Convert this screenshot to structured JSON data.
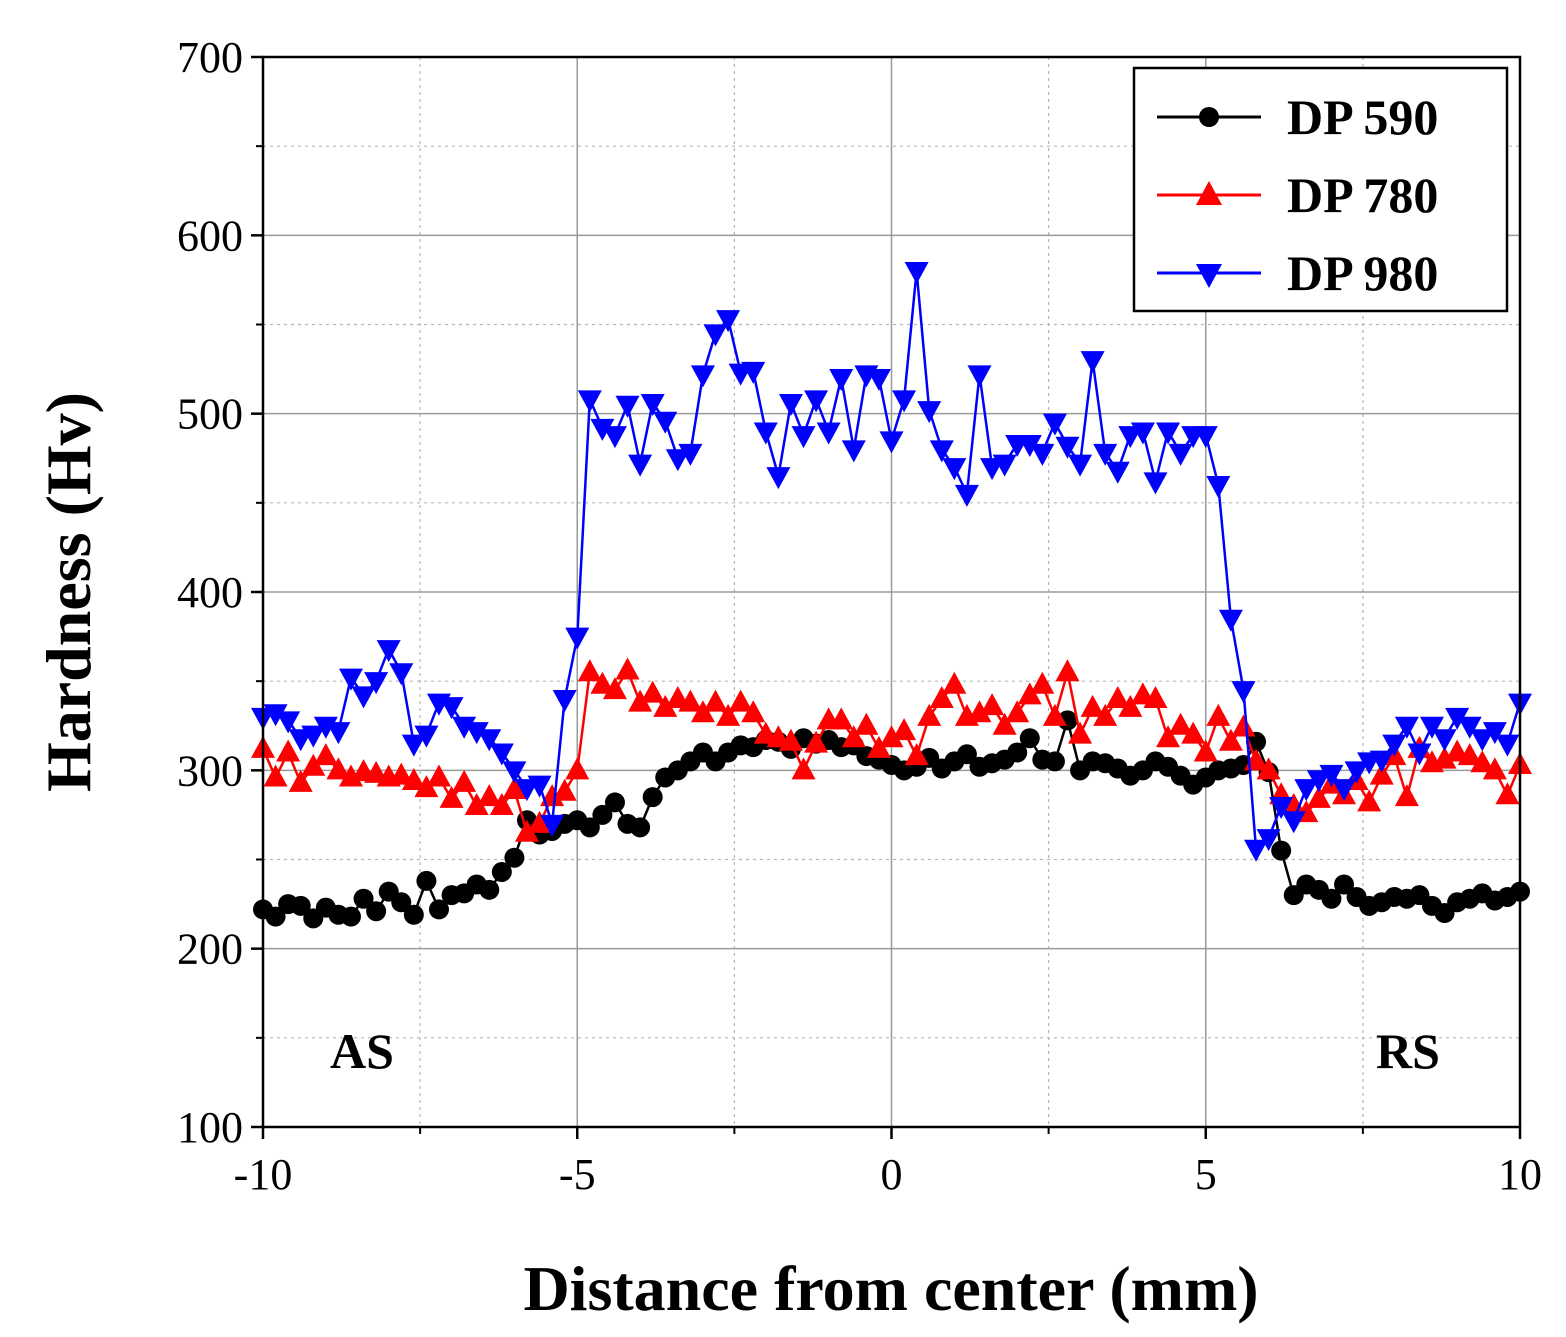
{
  "chart_data": {
    "type": "line",
    "title": "",
    "xlabel": "Distance from center (mm)",
    "ylabel": "Hardness (Hv)",
    "xlim": [
      -10,
      10
    ],
    "ylim": [
      100,
      700
    ],
    "xticks": [
      -10,
      -5,
      0,
      5,
      10
    ],
    "yticks": [
      100,
      200,
      300,
      400,
      500,
      600,
      700
    ],
    "grid": true,
    "legend_position": "top-right",
    "annotations": [
      "AS",
      "RS"
    ],
    "series": [
      {
        "name": "DP 590",
        "color": "#000000",
        "marker": "circle",
        "x": [
          -10.0,
          -9.8,
          -9.6,
          -9.4,
          -9.2,
          -9.0,
          -8.8,
          -8.6,
          -8.4,
          -8.2,
          -8.0,
          -7.8,
          -7.6,
          -7.4,
          -7.2,
          -7.0,
          -6.8,
          -6.6,
          -6.4,
          -6.2,
          -6.0,
          -5.8,
          -5.6,
          -5.4,
          -5.2,
          -5.0,
          -4.8,
          -4.6,
          -4.4,
          -4.2,
          -4.0,
          -3.8,
          -3.6,
          -3.4,
          -3.2,
          -3.0,
          -2.8,
          -2.6,
          -2.4,
          -2.2,
          -2.0,
          -1.8,
          -1.6,
          -1.4,
          -1.2,
          -1.0,
          -0.8,
          -0.6,
          -0.4,
          -0.2,
          0.0,
          0.2,
          0.4,
          0.6,
          0.8,
          1.0,
          1.2,
          1.4,
          1.6,
          1.8,
          2.0,
          2.2,
          2.4,
          2.6,
          2.8,
          3.0,
          3.2,
          3.4,
          3.6,
          3.8,
          4.0,
          4.2,
          4.4,
          4.6,
          4.8,
          5.0,
          5.2,
          5.4,
          5.6,
          5.8,
          6.0,
          6.2,
          6.4,
          6.6,
          6.8,
          7.0,
          7.2,
          7.4,
          7.6,
          7.8,
          8.0,
          8.2,
          8.4,
          8.6,
          8.8,
          9.0,
          9.2,
          9.4,
          9.6,
          9.8,
          10.0
        ],
        "y": [
          222,
          218,
          225,
          224,
          217,
          223,
          219,
          218,
          228,
          221,
          232,
          226,
          219,
          238,
          222,
          230,
          231,
          236,
          233,
          243,
          251,
          272,
          264,
          266,
          270,
          272,
          268,
          275,
          282,
          270,
          268,
          285,
          296,
          300,
          305,
          310,
          305,
          310,
          314,
          313,
          317,
          316,
          312,
          318,
          315,
          317,
          313,
          314,
          308,
          306,
          303,
          300,
          302,
          307,
          301,
          305,
          309,
          302,
          304,
          306,
          310,
          318,
          306,
          305,
          328,
          300,
          305,
          304,
          301,
          297,
          300,
          305,
          302,
          297,
          292,
          296,
          300,
          301,
          303,
          316,
          299,
          255,
          230,
          236,
          233,
          228,
          236,
          229,
          224,
          226,
          229,
          228,
          230,
          224,
          220,
          226,
          228,
          231,
          227,
          229,
          232
        ]
      },
      {
        "name": "DP 780",
        "color": "#ff0000",
        "marker": "triangle-up",
        "x": [
          -10.0,
          -9.8,
          -9.6,
          -9.4,
          -9.2,
          -9.0,
          -8.8,
          -8.6,
          -8.4,
          -8.2,
          -8.0,
          -7.8,
          -7.6,
          -7.4,
          -7.2,
          -7.0,
          -6.8,
          -6.6,
          -6.4,
          -6.2,
          -6.0,
          -5.8,
          -5.6,
          -5.4,
          -5.2,
          -5.0,
          -4.8,
          -4.6,
          -4.4,
          -4.2,
          -4.0,
          -3.8,
          -3.6,
          -3.4,
          -3.2,
          -3.0,
          -2.8,
          -2.6,
          -2.4,
          -2.2,
          -2.0,
          -1.8,
          -1.6,
          -1.4,
          -1.2,
          -1.0,
          -0.8,
          -0.6,
          -0.4,
          -0.2,
          0.0,
          0.2,
          0.4,
          0.6,
          0.8,
          1.0,
          1.2,
          1.4,
          1.6,
          1.8,
          2.0,
          2.2,
          2.4,
          2.6,
          2.8,
          3.0,
          3.2,
          3.4,
          3.6,
          3.8,
          4.0,
          4.2,
          4.4,
          4.6,
          4.8,
          5.0,
          5.2,
          5.4,
          5.6,
          5.8,
          6.0,
          6.2,
          6.4,
          6.6,
          6.8,
          7.0,
          7.2,
          7.4,
          7.6,
          7.8,
          8.0,
          8.2,
          8.4,
          8.6,
          8.8,
          9.0,
          9.2,
          9.4,
          9.6,
          9.8,
          10.0
        ],
        "y": [
          312,
          296,
          310,
          293,
          302,
          308,
          300,
          296,
          299,
          298,
          296,
          297,
          294,
          290,
          296,
          284,
          293,
          280,
          285,
          280,
          289,
          265,
          270,
          285,
          288,
          300,
          355,
          348,
          345,
          356,
          338,
          343,
          335,
          340,
          338,
          332,
          338,
          330,
          338,
          332,
          320,
          318,
          316,
          300,
          315,
          328,
          328,
          318,
          325,
          312,
          318,
          322,
          308,
          330,
          340,
          348,
          330,
          332,
          336,
          325,
          332,
          342,
          348,
          330,
          355,
          320,
          335,
          330,
          340,
          335,
          342,
          340,
          318,
          325,
          320,
          310,
          330,
          316,
          324,
          305,
          300,
          286,
          280,
          276,
          284,
          292,
          286,
          294,
          282,
          297,
          308,
          285,
          312,
          304,
          306,
          310,
          308,
          304,
          300,
          286,
          303
        ]
      },
      {
        "name": "DP 980",
        "color": "#0000ff",
        "marker": "triangle-down",
        "x": [
          -10.0,
          -9.8,
          -9.6,
          -9.4,
          -9.2,
          -9.0,
          -8.8,
          -8.6,
          -8.4,
          -8.2,
          -8.0,
          -7.8,
          -7.6,
          -7.4,
          -7.2,
          -7.0,
          -6.8,
          -6.6,
          -6.4,
          -6.2,
          -6.0,
          -5.8,
          -5.6,
          -5.4,
          -5.2,
          -5.0,
          -4.8,
          -4.6,
          -4.4,
          -4.2,
          -4.0,
          -3.8,
          -3.6,
          -3.4,
          -3.2,
          -3.0,
          -2.8,
          -2.6,
          -2.4,
          -2.2,
          -2.0,
          -1.8,
          -1.6,
          -1.4,
          -1.2,
          -1.0,
          -0.8,
          -0.6,
          -0.4,
          -0.2,
          0.0,
          0.2,
          0.4,
          0.6,
          0.8,
          1.0,
          1.2,
          1.4,
          1.6,
          1.8,
          2.0,
          2.2,
          2.4,
          2.6,
          2.8,
          3.0,
          3.2,
          3.4,
          3.6,
          3.8,
          4.0,
          4.2,
          4.4,
          4.6,
          4.8,
          5.0,
          5.2,
          5.4,
          5.6,
          5.8,
          6.0,
          6.2,
          6.4,
          6.6,
          6.8,
          7.0,
          7.2,
          7.4,
          7.6,
          7.8,
          8.0,
          8.2,
          8.4,
          8.6,
          8.8,
          9.0,
          9.2,
          9.4,
          9.6,
          9.8,
          10.0
        ],
        "y": [
          330,
          332,
          328,
          318,
          320,
          325,
          322,
          352,
          342,
          350,
          368,
          355,
          315,
          320,
          338,
          336,
          325,
          322,
          318,
          310,
          300,
          290,
          292,
          270,
          340,
          375,
          508,
          492,
          488,
          505,
          472,
          506,
          496,
          475,
          478,
          522,
          545,
          553,
          523,
          524,
          490,
          465,
          506,
          488,
          508,
          490,
          520,
          480,
          522,
          520,
          485,
          508,
          580,
          502,
          480,
          470,
          455,
          522,
          470,
          472,
          483,
          483,
          478,
          495,
          482,
          472,
          530,
          478,
          468,
          488,
          490,
          462,
          490,
          478,
          488,
          488,
          460,
          385,
          345,
          256,
          262,
          280,
          272,
          290,
          295,
          298,
          290,
          300,
          305,
          306,
          315,
          325,
          310,
          325,
          318,
          330,
          325,
          318,
          322,
          315,
          338
        ]
      }
    ]
  }
}
